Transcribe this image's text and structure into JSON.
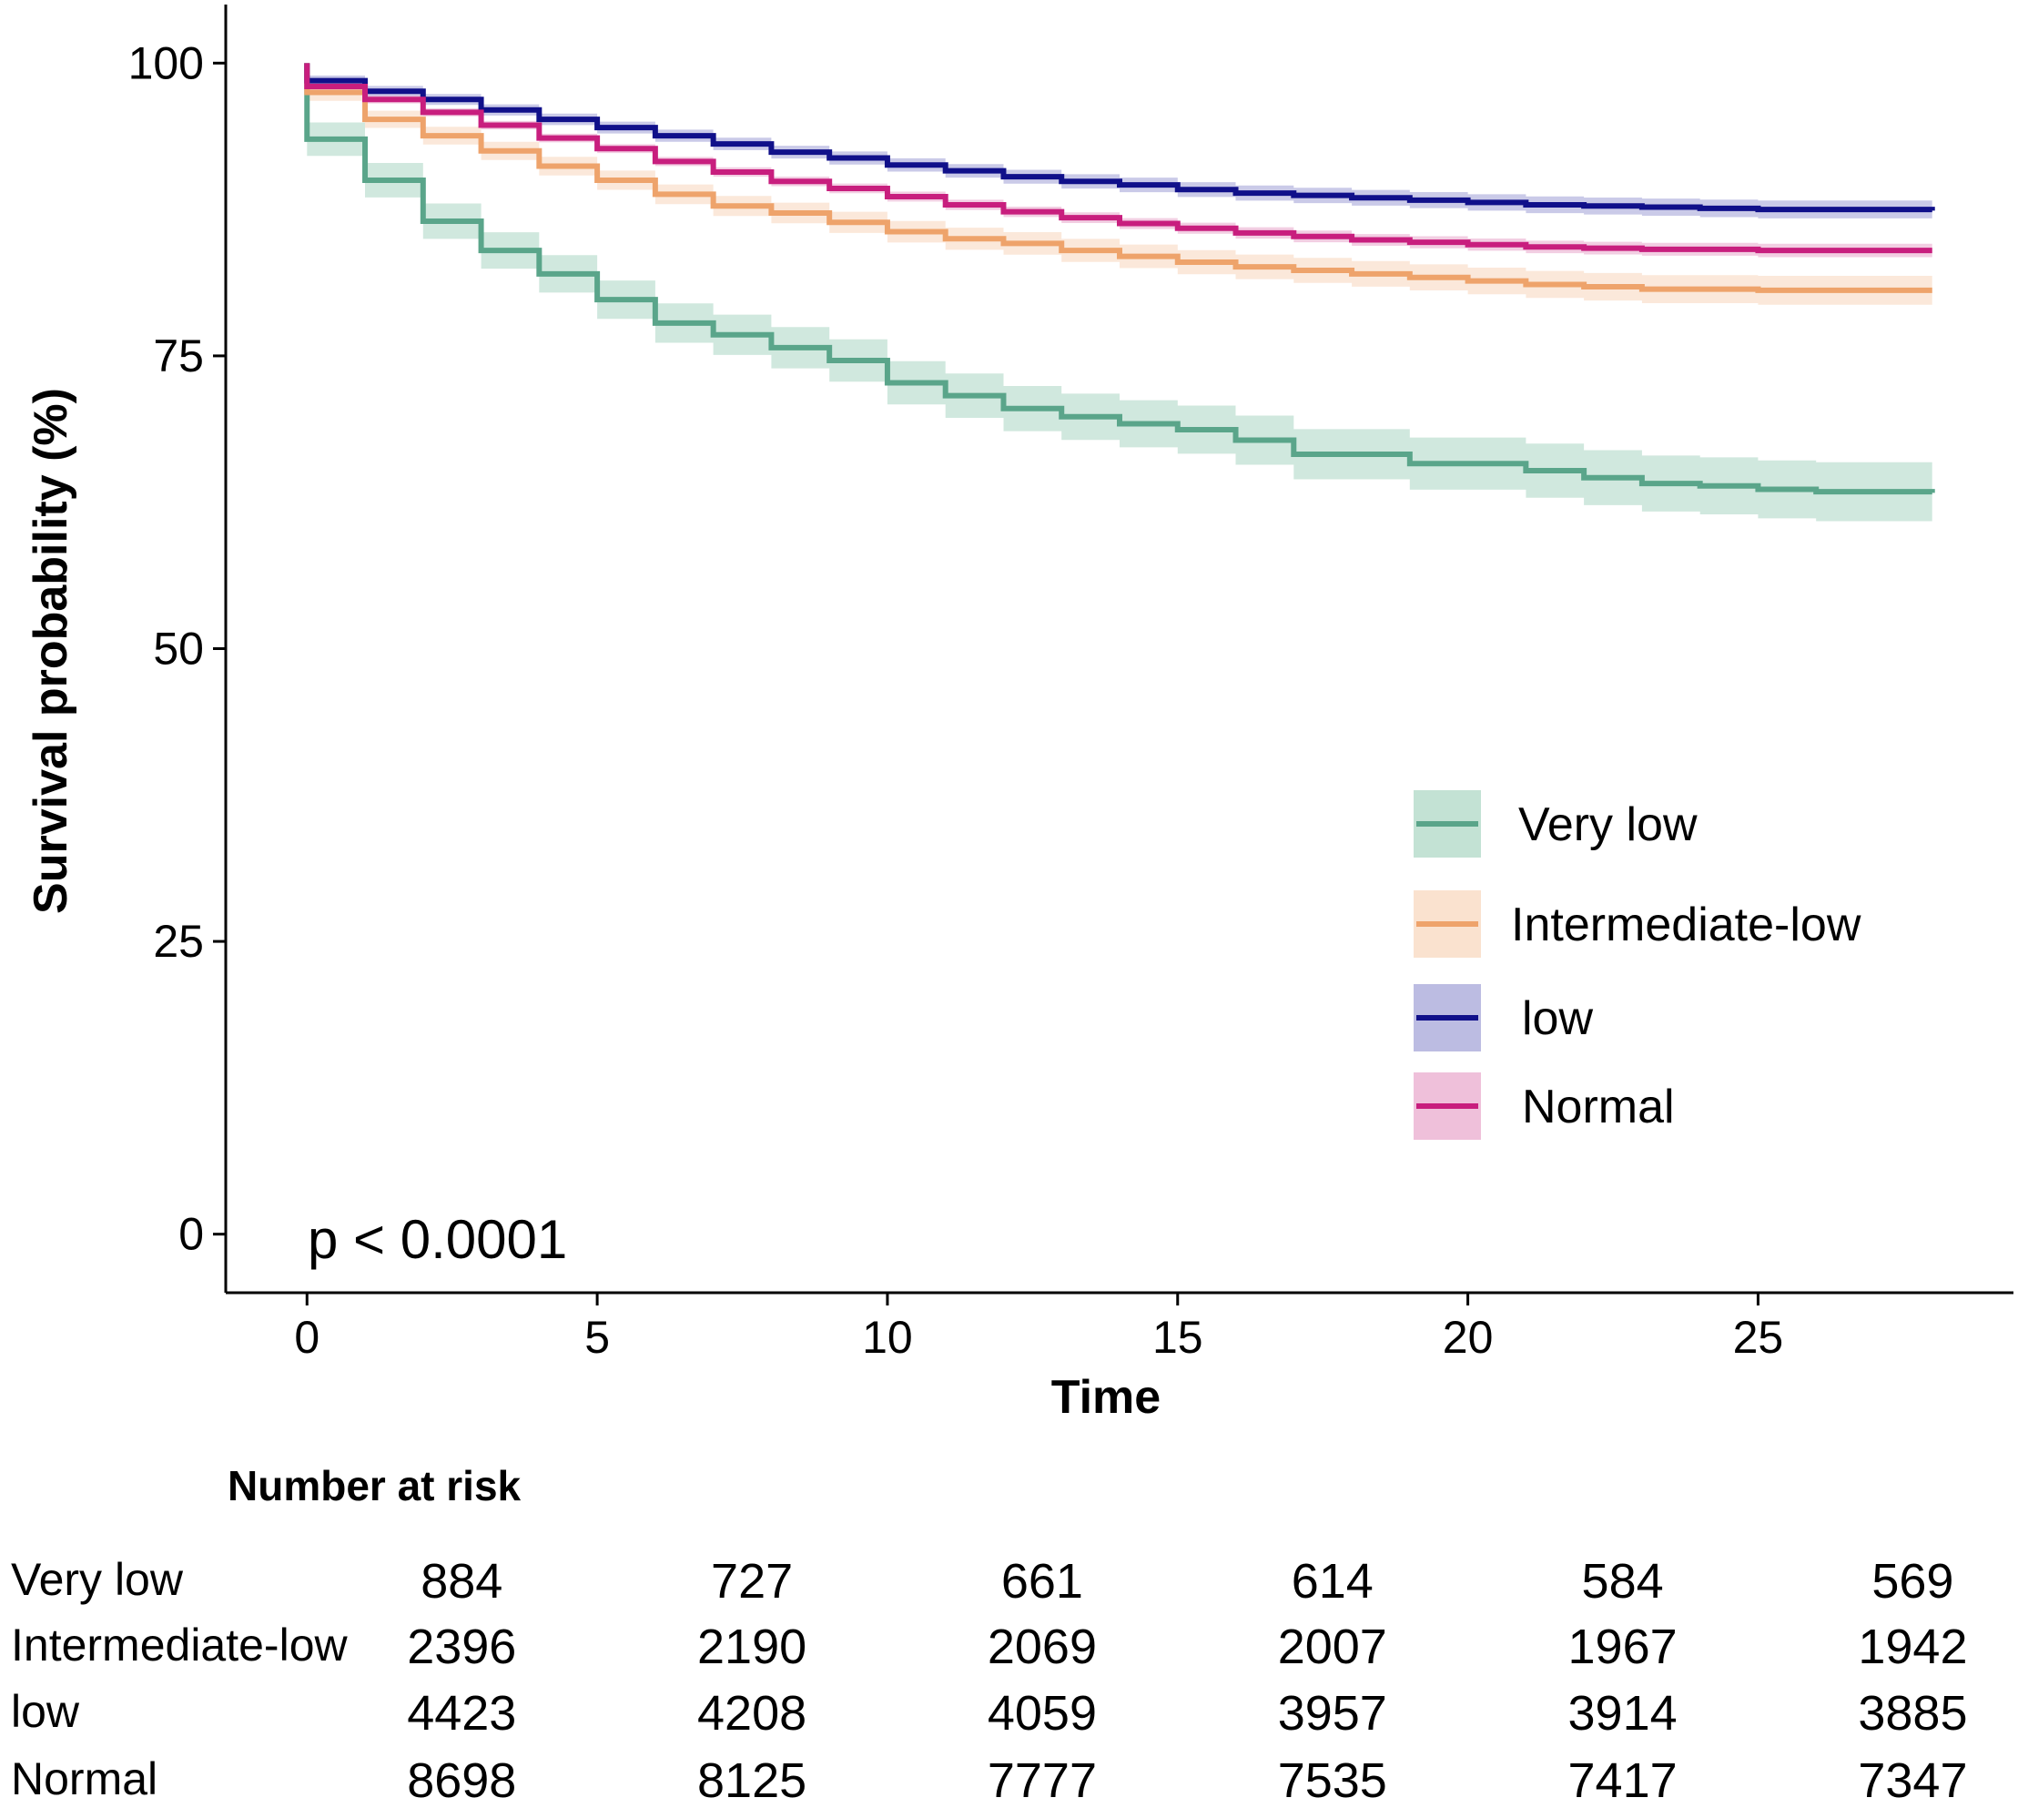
{
  "chart_data": {
    "type": "line",
    "subtype": "kaplan-meier step survival curves with confidence bands",
    "xlabel": "Time",
    "ylabel": "Survival probability (%)",
    "xlim": [
      -1.4,
      29.4
    ],
    "ylim": [
      -5,
      105
    ],
    "x_ticks": [
      0,
      5,
      10,
      15,
      20,
      25
    ],
    "y_ticks": [
      0,
      25,
      50,
      75,
      100
    ],
    "annotation": "p < 0.0001",
    "legend_position": "right-middle",
    "series": [
      {
        "name": "Very low",
        "color": "#5aa58a",
        "band_color": "#a9d5c2",
        "steps": [
          [
            0,
            93.5
          ],
          [
            1,
            90.0
          ],
          [
            2,
            86.5
          ],
          [
            3,
            84.0
          ],
          [
            4,
            82.0
          ],
          [
            5,
            79.8
          ],
          [
            6,
            77.8
          ],
          [
            7,
            76.8
          ],
          [
            8,
            75.7
          ],
          [
            9,
            74.6
          ],
          [
            10,
            72.7
          ],
          [
            11,
            71.6
          ],
          [
            12,
            70.5
          ],
          [
            13,
            69.8
          ],
          [
            14,
            69.2
          ],
          [
            15,
            68.7
          ],
          [
            16,
            67.8
          ],
          [
            17,
            66.6
          ],
          [
            19,
            65.8
          ],
          [
            21,
            65.2
          ],
          [
            22,
            64.6
          ],
          [
            23,
            64.1
          ],
          [
            24,
            63.9
          ],
          [
            25,
            63.6
          ],
          [
            26,
            63.4
          ],
          [
            28,
            63.3
          ]
        ],
        "band": 2.6
      },
      {
        "name": "Intermediate-low",
        "color": "#eea36b",
        "band_color": "#f8d6bb",
        "steps": [
          [
            0,
            97.5
          ],
          [
            1,
            95.2
          ],
          [
            2,
            93.8
          ],
          [
            3,
            92.5
          ],
          [
            4,
            91.2
          ],
          [
            5,
            90.0
          ],
          [
            6,
            88.8
          ],
          [
            7,
            87.8
          ],
          [
            8,
            87.2
          ],
          [
            9,
            86.4
          ],
          [
            10,
            85.6
          ],
          [
            11,
            85.0
          ],
          [
            12,
            84.6
          ],
          [
            13,
            84.0
          ],
          [
            14,
            83.5
          ],
          [
            15,
            83.0
          ],
          [
            16,
            82.6
          ],
          [
            17,
            82.3
          ],
          [
            18,
            82.0
          ],
          [
            19,
            81.7
          ],
          [
            20,
            81.4
          ],
          [
            21,
            81.1
          ],
          [
            22,
            80.9
          ],
          [
            23,
            80.7
          ],
          [
            25,
            80.6
          ],
          [
            28,
            80.6
          ]
        ],
        "band": 1.3
      },
      {
        "name": "low",
        "color": "#10108a",
        "band_color": "#9f9fd6",
        "steps": [
          [
            0,
            98.5
          ],
          [
            1,
            97.6
          ],
          [
            2,
            96.9
          ],
          [
            3,
            96.0
          ],
          [
            4,
            95.2
          ],
          [
            5,
            94.5
          ],
          [
            6,
            93.8
          ],
          [
            7,
            93.1
          ],
          [
            8,
            92.4
          ],
          [
            9,
            91.9
          ],
          [
            10,
            91.3
          ],
          [
            11,
            90.8
          ],
          [
            12,
            90.3
          ],
          [
            13,
            89.9
          ],
          [
            14,
            89.6
          ],
          [
            15,
            89.2
          ],
          [
            16,
            88.9
          ],
          [
            17,
            88.7
          ],
          [
            18,
            88.5
          ],
          [
            19,
            88.3
          ],
          [
            20,
            88.1
          ],
          [
            21,
            87.9
          ],
          [
            22,
            87.8
          ],
          [
            23,
            87.7
          ],
          [
            24,
            87.6
          ],
          [
            25,
            87.5
          ],
          [
            28,
            87.4
          ]
        ],
        "band": 0.8
      },
      {
        "name": "Normal",
        "color": "#c81e7e",
        "band_color": "#e8a5cb",
        "steps": [
          [
            0,
            98.0
          ],
          [
            1,
            96.9
          ],
          [
            2,
            95.8
          ],
          [
            3,
            94.7
          ],
          [
            4,
            93.6
          ],
          [
            5,
            92.7
          ],
          [
            6,
            91.6
          ],
          [
            7,
            90.7
          ],
          [
            8,
            89.9
          ],
          [
            9,
            89.3
          ],
          [
            10,
            88.6
          ],
          [
            11,
            87.9
          ],
          [
            12,
            87.3
          ],
          [
            13,
            86.8
          ],
          [
            14,
            86.3
          ],
          [
            15,
            85.9
          ],
          [
            16,
            85.5
          ],
          [
            17,
            85.2
          ],
          [
            18,
            84.9
          ],
          [
            19,
            84.7
          ],
          [
            20,
            84.5
          ],
          [
            21,
            84.3
          ],
          [
            22,
            84.2
          ],
          [
            23,
            84.1
          ],
          [
            25,
            84.0
          ],
          [
            28,
            84.0
          ]
        ],
        "band": 0.6
      }
    ],
    "risk_table": {
      "title": "Number at risk",
      "times": [
        0,
        5,
        10,
        15,
        20,
        25
      ],
      "rows": [
        {
          "name": "Very low",
          "values": [
            "884",
            "727",
            "661",
            "614",
            "584",
            "569"
          ]
        },
        {
          "name": "Intermediate-low",
          "values": [
            "2396",
            "2190",
            "2069",
            "2007",
            "1967",
            "1942"
          ]
        },
        {
          "name": "low",
          "values": [
            "4423",
            "4208",
            "4059",
            "3957",
            "3914",
            "3885"
          ]
        },
        {
          "name": "Normal",
          "values": [
            "8698",
            "8125",
            "7777",
            "7535",
            "7417",
            "7347"
          ]
        }
      ]
    }
  }
}
